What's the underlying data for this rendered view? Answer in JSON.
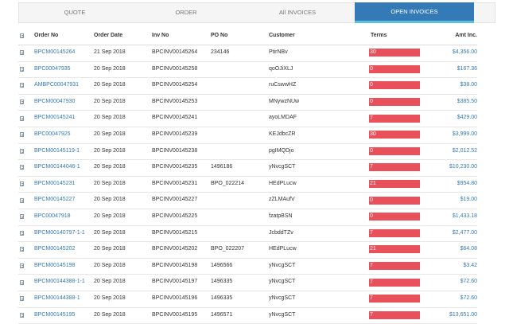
{
  "tabs": [
    {
      "label": "QUOTE"
    },
    {
      "label": "ORDER"
    },
    {
      "label": "All INVOICES"
    },
    {
      "label": "OPEN INVOICES"
    }
  ],
  "active_tab": 3,
  "columns": {
    "order_no": "Order No",
    "order_date": "Order Date",
    "inv_no": "Inv No",
    "po_no": "PO No",
    "customer": "Customer",
    "terms": "Terms",
    "amt": "Amt Inc."
  },
  "bar_color": "#e8505b",
  "rows": [
    {
      "order_no": "BPCM00145264",
      "order_date": "21 Sep 2018",
      "inv_no": "BPCINV00145264",
      "po_no": "234146",
      "customer": "PtirNBv",
      "terms": "30",
      "amt": "$4,356.00"
    },
    {
      "order_no": "BPC00047935",
      "order_date": "20 Sep 2018",
      "inv_no": "BPCINV00145258",
      "po_no": "",
      "customer": "qoOJiXLJ",
      "terms": "0",
      "amt": "$167.36"
    },
    {
      "order_no": "AMBPC00047931",
      "order_date": "20 Sep 2018",
      "inv_no": "BPCINV00145254",
      "po_no": "",
      "customer": "ruCswwHZ",
      "terms": "0",
      "amt": "$38.00"
    },
    {
      "order_no": "BPCM00047930",
      "order_date": "20 Sep 2018",
      "inv_no": "BPCINV00145253",
      "po_no": "",
      "customer": "MNywzNUw",
      "terms": "0",
      "amt": "$385.50"
    },
    {
      "order_no": "BPCM00145241",
      "order_date": "20 Sep 2018",
      "inv_no": "BPCINV00145241",
      "po_no": "",
      "customer": "ayoLMDAF",
      "terms": "7",
      "amt": "$429.00"
    },
    {
      "order_no": "BPC00047925",
      "order_date": "20 Sep 2018",
      "inv_no": "BPCINV00145239",
      "po_no": "",
      "customer": "KEJdbcZR",
      "terms": "30",
      "amt": "$3,999.00"
    },
    {
      "order_no": "BPCM00145119-1",
      "order_date": "20 Sep 2018",
      "inv_no": "BPCINV00145238",
      "po_no": "",
      "customer": "pgIMQDjo",
      "terms": "0",
      "amt": "$2,012.52"
    },
    {
      "order_no": "BPCM00144046-1",
      "order_date": "20 Sep 2018",
      "inv_no": "BPCINV00145235",
      "po_no": "1496186",
      "customer": "yNvcgSCT",
      "terms": "7",
      "amt": "$10,230.00"
    },
    {
      "order_no": "BPCM00145231",
      "order_date": "20 Sep 2018",
      "inv_no": "BPCINV00145231",
      "po_no": "BPO_022214",
      "customer": "HEdPLucw",
      "terms": "21",
      "amt": "$954.80"
    },
    {
      "order_no": "BPCM00145227",
      "order_date": "20 Sep 2018",
      "inv_no": "BPCINV00145227",
      "po_no": "",
      "customer": "zZLMAufV",
      "terms": "0",
      "amt": "$19.00"
    },
    {
      "order_no": "BPC00047918",
      "order_date": "20 Sep 2018",
      "inv_no": "BPCINV00145225",
      "po_no": "",
      "customer": "fzatpBSN",
      "terms": "0",
      "amt": "$1,433.18"
    },
    {
      "order_no": "BPCM00140797-1-1",
      "order_date": "20 Sep 2018",
      "inv_no": "BPCINV00145215",
      "po_no": "",
      "customer": "JcbddTZv",
      "terms": "7",
      "amt": "$2,477.00"
    },
    {
      "order_no": "BPCM00145202",
      "order_date": "20 Sep 2018",
      "inv_no": "BPCINV00145202",
      "po_no": "BPO_022207",
      "customer": "HEdPLucw",
      "terms": "21",
      "amt": "$64.08"
    },
    {
      "order_no": "BPCM00145198",
      "order_date": "20 Sep 2018",
      "inv_no": "BPCINV00145198",
      "po_no": "1496566",
      "customer": "yNvcgSCT",
      "terms": "7",
      "amt": "$3.42"
    },
    {
      "order_no": "BPCM00144388-1-1",
      "order_date": "20 Sep 2018",
      "inv_no": "BPCINV00145197",
      "po_no": "1496335",
      "customer": "yNvcgSCT",
      "terms": "7",
      "amt": "$72.60"
    },
    {
      "order_no": "BPCM00144388-1",
      "order_date": "20 Sep 2018",
      "inv_no": "BPCINV00145196",
      "po_no": "1496335",
      "customer": "yNvcgSCT",
      "terms": "7",
      "amt": "$72.60"
    },
    {
      "order_no": "BPCM00145195",
      "order_date": "20 Sep 2018",
      "inv_no": "BPCINV00145195",
      "po_no": "1496571",
      "customer": "yNvcgSCT",
      "terms": "7",
      "amt": "$13,651.00"
    }
  ]
}
